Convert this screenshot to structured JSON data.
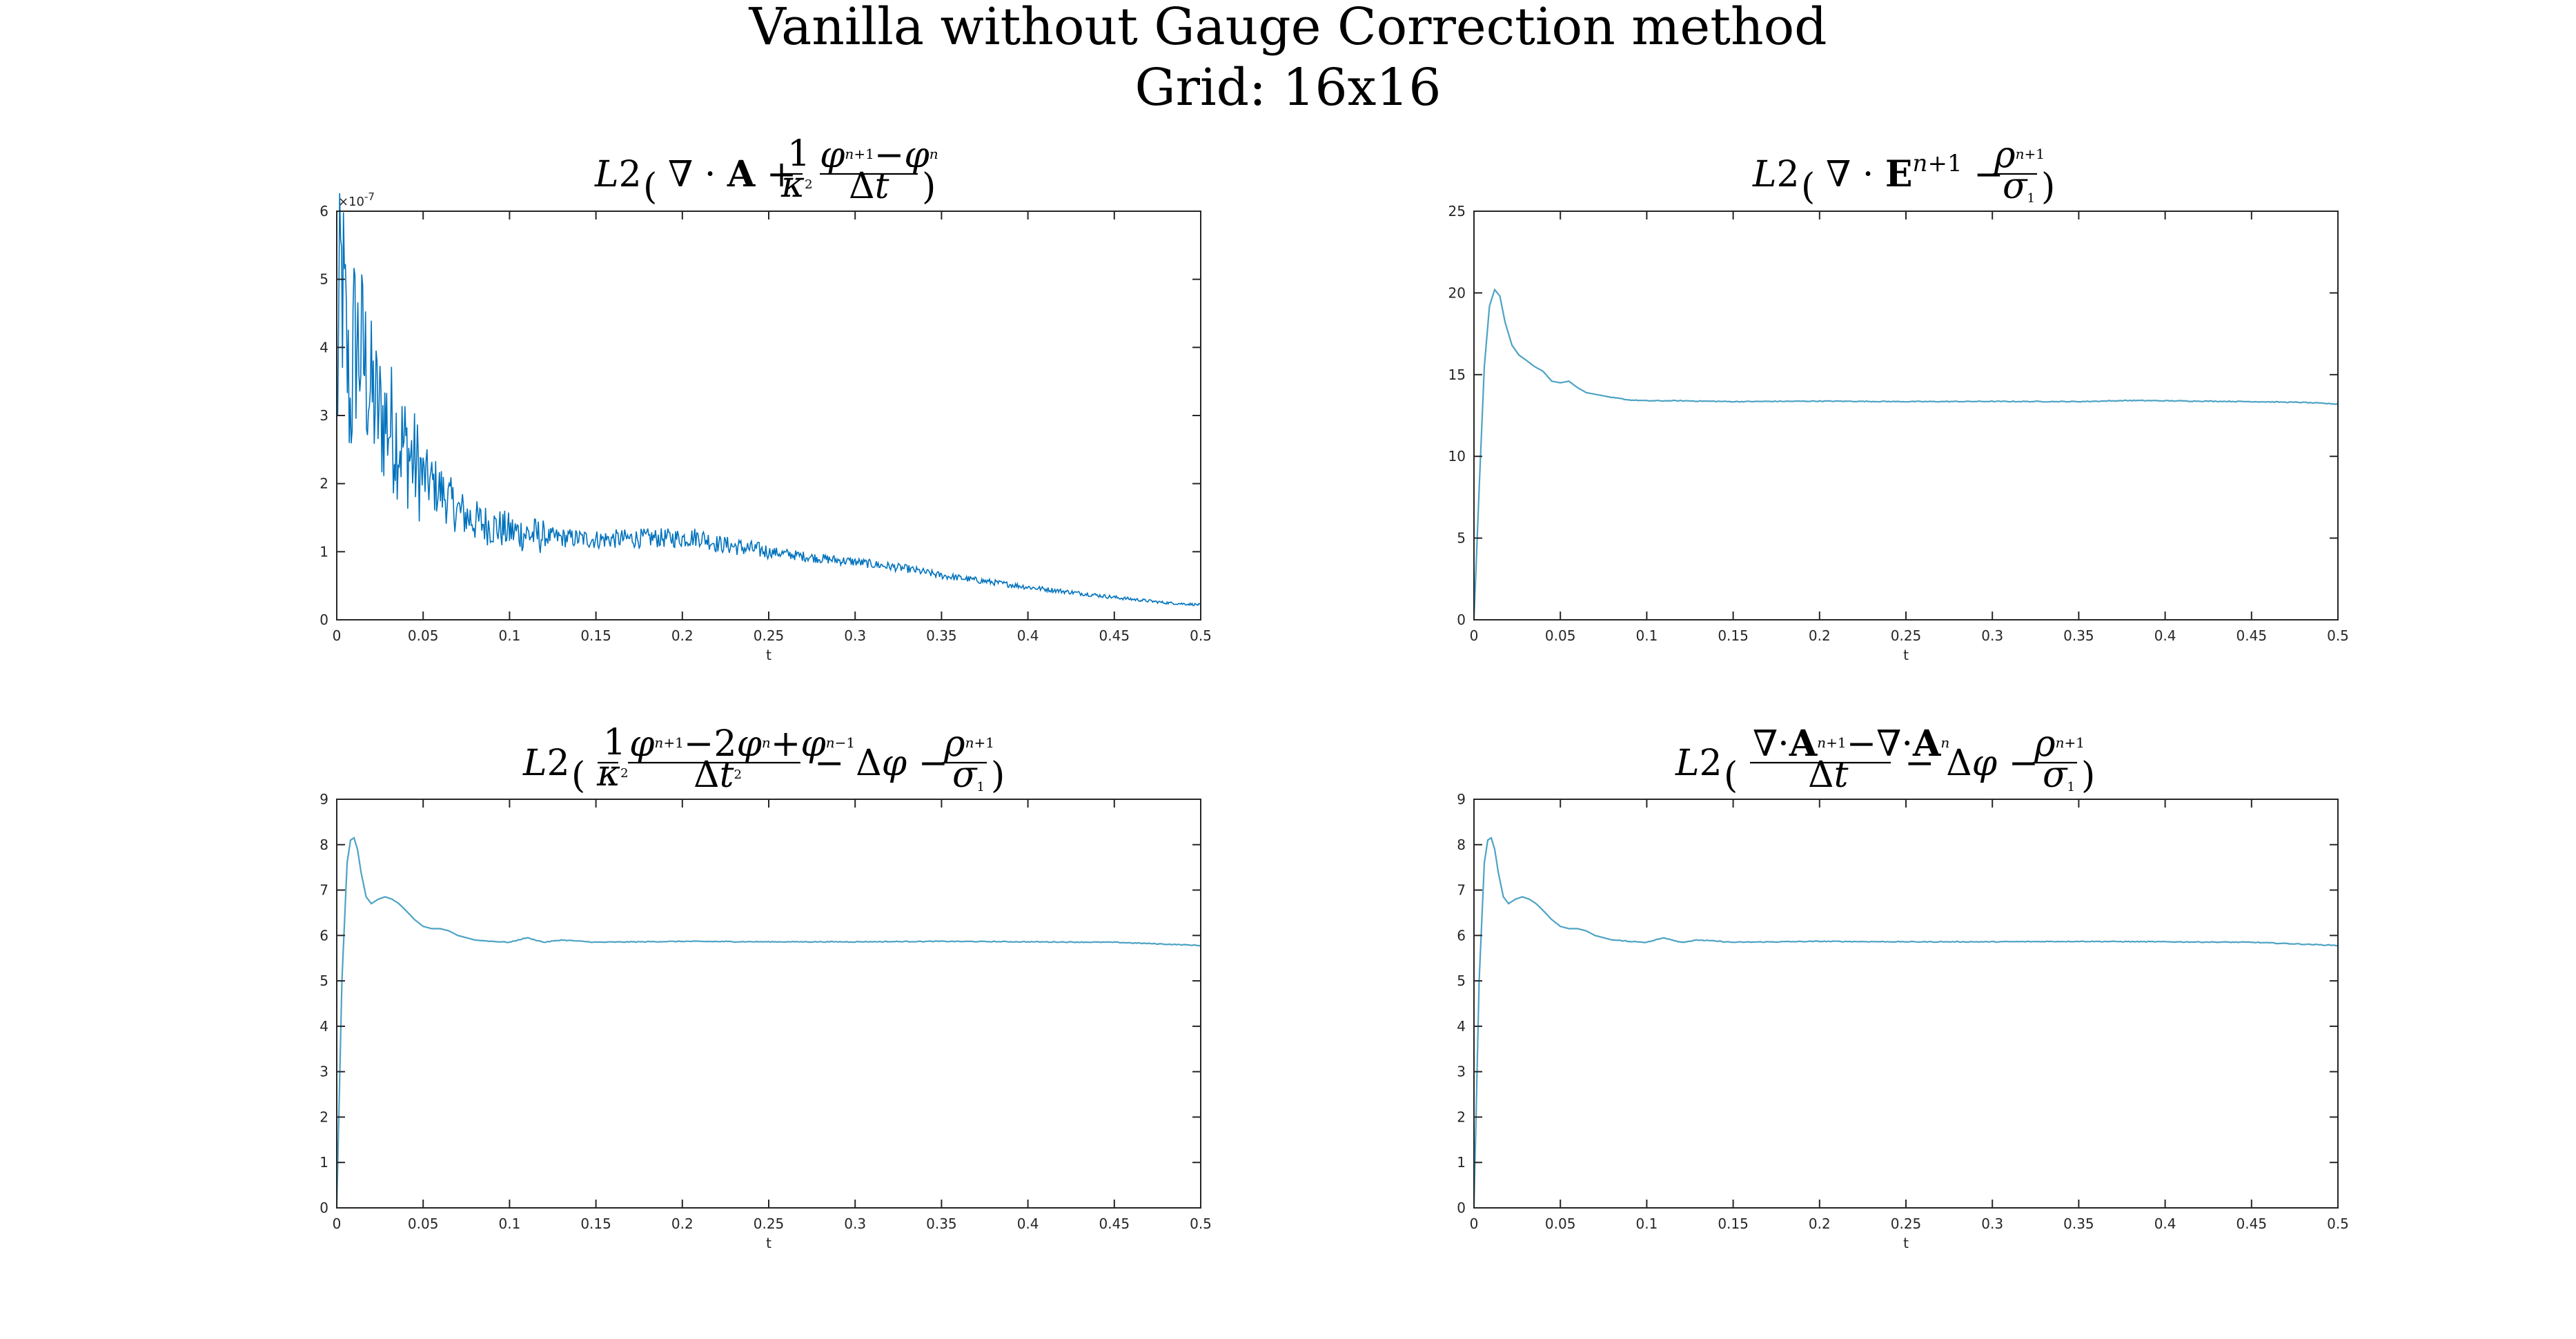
{
  "figure": {
    "title_line1": "Vanilla without Gauge Correction method",
    "title_line2": "Grid: 16x16",
    "line_color": "#0072BD",
    "line_color_light": "#4DA3C4",
    "axis_color": "#262626"
  },
  "chart_data": [
    {
      "id": "p1",
      "type": "line",
      "title": "L2 ( ∇·A + (1/κ²) (φⁿ⁺¹ − φⁿ)/Δt )",
      "xlabel": "t",
      "ylabel": "",
      "xlim": [
        0,
        0.5
      ],
      "ylim": [
        0,
        6e-07
      ],
      "y_exponent_label": "×10",
      "y_exponent_power": "-7",
      "xticks": [
        0,
        0.05,
        0.1,
        0.15,
        0.2,
        0.25,
        0.3,
        0.35,
        0.4,
        0.45,
        0.5
      ],
      "xtick_labels": [
        "0",
        "0.05",
        "0.1",
        "0.15",
        "0.2",
        "0.25",
        "0.3",
        "0.35",
        "0.4",
        "0.45",
        "0.5"
      ],
      "yticks": [
        0,
        1e-07,
        2e-07,
        3e-07,
        4e-07,
        5e-07,
        6e-07
      ],
      "ytick_labels": [
        "0",
        "1",
        "2",
        "3",
        "4",
        "5",
        "6"
      ],
      "grid": false,
      "noisy": true,
      "series": [
        {
          "x": [
            0,
            0.002,
            0.004,
            0.006,
            0.008,
            0.01,
            0.015,
            0.02,
            0.025,
            0.03,
            0.04,
            0.05,
            0.06,
            0.07,
            0.08,
            0.1,
            0.12,
            0.15,
            0.18,
            0.2,
            0.21,
            0.22,
            0.25,
            0.28,
            0.3,
            0.33,
            0.35,
            0.38,
            0.4,
            0.42,
            0.45,
            0.48,
            0.5
          ],
          "y": [
            2.9e-07,
            5e-07,
            4.7e-07,
            3.8e-07,
            3e-07,
            4.1e-07,
            3.9e-07,
            3.3e-07,
            3e-07,
            2.9e-07,
            2.5e-07,
            2.1e-07,
            1.9e-07,
            1.6e-07,
            1.45e-07,
            1.3e-07,
            1.22e-07,
            1.18e-07,
            1.2e-07,
            1.2e-07,
            1.22e-07,
            1.12e-07,
            1e-07,
            9e-08,
            8.5e-08,
            7.5e-08,
            6.5e-08,
            5.5e-08,
            4.8e-08,
            4.2e-08,
            3.3e-08,
            2.5e-08,
            2.2e-08
          ]
        }
      ]
    },
    {
      "id": "p2",
      "type": "line",
      "title": "L2 ( ∇·Eⁿ⁺¹ − ρⁿ⁺¹/σ₁ )",
      "xlabel": "t",
      "ylabel": "",
      "xlim": [
        0,
        0.5
      ],
      "ylim": [
        0,
        25
      ],
      "xticks": [
        0,
        0.05,
        0.1,
        0.15,
        0.2,
        0.25,
        0.3,
        0.35,
        0.4,
        0.45,
        0.5
      ],
      "xtick_labels": [
        "0",
        "0.05",
        "0.1",
        "0.15",
        "0.2",
        "0.25",
        "0.3",
        "0.35",
        "0.4",
        "0.45",
        "0.5"
      ],
      "yticks": [
        0,
        5,
        10,
        15,
        20,
        25
      ],
      "ytick_labels": [
        "0",
        "5",
        "10",
        "15",
        "20",
        "25"
      ],
      "grid": false,
      "noisy": false,
      "series": [
        {
          "x": [
            0,
            0.003,
            0.006,
            0.009,
            0.012,
            0.015,
            0.018,
            0.022,
            0.026,
            0.03,
            0.035,
            0.04,
            0.045,
            0.05,
            0.055,
            0.06,
            0.065,
            0.07,
            0.08,
            0.09,
            0.1,
            0.12,
            0.15,
            0.2,
            0.25,
            0.3,
            0.35,
            0.38,
            0.4,
            0.45,
            0.48,
            0.5
          ],
          "y": [
            0,
            8.0,
            15.5,
            19.2,
            20.2,
            19.8,
            18.2,
            16.8,
            16.2,
            15.9,
            15.5,
            15.2,
            14.6,
            14.5,
            14.6,
            14.2,
            13.9,
            13.8,
            13.6,
            13.45,
            13.4,
            13.4,
            13.35,
            13.38,
            13.35,
            13.36,
            13.35,
            13.42,
            13.4,
            13.35,
            13.3,
            13.2
          ]
        }
      ]
    },
    {
      "id": "p3",
      "type": "line",
      "title": "L2 ( (1/κ²) (φⁿ⁺¹ − 2φⁿ + φⁿ⁻¹)/Δt² − Δφ − ρⁿ⁺¹/σ₁ )",
      "xlabel": "t",
      "ylabel": "",
      "xlim": [
        0,
        0.5
      ],
      "ylim": [
        0,
        9
      ],
      "xticks": [
        0,
        0.05,
        0.1,
        0.15,
        0.2,
        0.25,
        0.3,
        0.35,
        0.4,
        0.45,
        0.5
      ],
      "xtick_labels": [
        "0",
        "0.05",
        "0.1",
        "0.15",
        "0.2",
        "0.25",
        "0.3",
        "0.35",
        "0.4",
        "0.45",
        "0.5"
      ],
      "yticks": [
        0,
        1,
        2,
        3,
        4,
        5,
        6,
        7,
        8,
        9
      ],
      "ytick_labels": [
        "0",
        "1",
        "2",
        "3",
        "4",
        "5",
        "6",
        "7",
        "8",
        "9"
      ],
      "grid": false,
      "noisy": false,
      "series": [
        {
          "x": [
            0,
            0.003,
            0.006,
            0.008,
            0.01,
            0.012,
            0.014,
            0.017,
            0.02,
            0.024,
            0.028,
            0.032,
            0.036,
            0.04,
            0.045,
            0.05,
            0.055,
            0.06,
            0.065,
            0.07,
            0.08,
            0.09,
            0.1,
            0.11,
            0.12,
            0.13,
            0.15,
            0.2,
            0.25,
            0.3,
            0.35,
            0.4,
            0.45,
            0.5
          ],
          "y": [
            0,
            5.0,
            7.6,
            8.1,
            8.15,
            7.9,
            7.4,
            6.85,
            6.7,
            6.8,
            6.85,
            6.8,
            6.7,
            6.55,
            6.35,
            6.2,
            6.15,
            6.15,
            6.1,
            6.0,
            5.9,
            5.87,
            5.85,
            5.95,
            5.85,
            5.9,
            5.85,
            5.87,
            5.86,
            5.86,
            5.87,
            5.86,
            5.85,
            5.78
          ]
        }
      ]
    },
    {
      "id": "p4",
      "type": "line",
      "title": "L2 ( (∇·Aⁿ⁺¹ − ∇·Aⁿ)/Δt − Δφ − ρⁿ⁺¹/σ₁ )",
      "xlabel": "t",
      "ylabel": "",
      "xlim": [
        0,
        0.5
      ],
      "ylim": [
        0,
        9
      ],
      "xticks": [
        0,
        0.05,
        0.1,
        0.15,
        0.2,
        0.25,
        0.3,
        0.35,
        0.4,
        0.45,
        0.5
      ],
      "xtick_labels": [
        "0",
        "0.05",
        "0.1",
        "0.15",
        "0.2",
        "0.25",
        "0.3",
        "0.35",
        "0.4",
        "0.45",
        "0.5"
      ],
      "yticks": [
        0,
        1,
        2,
        3,
        4,
        5,
        6,
        7,
        8,
        9
      ],
      "ytick_labels": [
        "0",
        "1",
        "2",
        "3",
        "4",
        "5",
        "6",
        "7",
        "8",
        "9"
      ],
      "grid": false,
      "noisy": false,
      "series": [
        {
          "x": [
            0,
            0.003,
            0.006,
            0.008,
            0.01,
            0.012,
            0.014,
            0.017,
            0.02,
            0.024,
            0.028,
            0.032,
            0.036,
            0.04,
            0.045,
            0.05,
            0.055,
            0.06,
            0.065,
            0.07,
            0.08,
            0.09,
            0.1,
            0.11,
            0.12,
            0.13,
            0.15,
            0.2,
            0.25,
            0.3,
            0.35,
            0.4,
            0.45,
            0.5
          ],
          "y": [
            0,
            5.0,
            7.6,
            8.1,
            8.15,
            7.9,
            7.4,
            6.85,
            6.7,
            6.8,
            6.85,
            6.8,
            6.7,
            6.55,
            6.35,
            6.2,
            6.15,
            6.15,
            6.1,
            6.0,
            5.9,
            5.87,
            5.85,
            5.95,
            5.85,
            5.9,
            5.85,
            5.87,
            5.86,
            5.86,
            5.87,
            5.86,
            5.85,
            5.78
          ]
        }
      ]
    }
  ]
}
